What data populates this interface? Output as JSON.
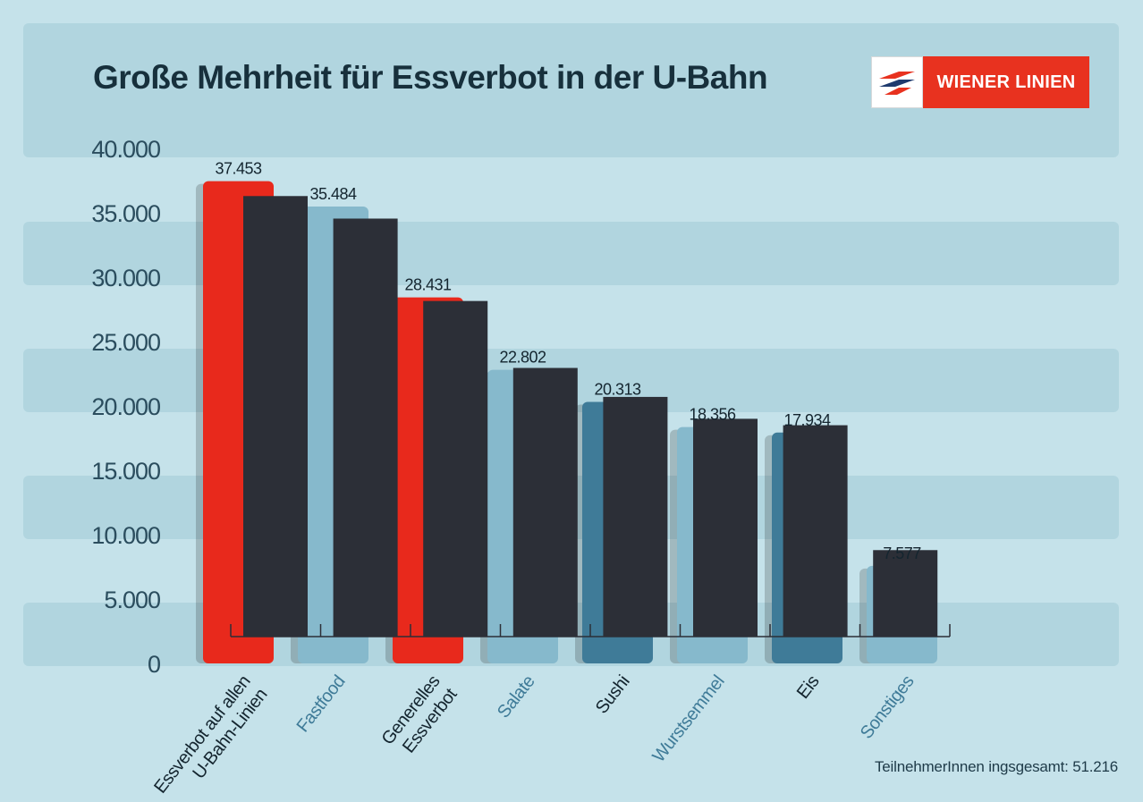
{
  "header": {
    "title": "Große Mehrheit für Essverbot in der U-Bahn",
    "logo_text": "WIENER LINIEN"
  },
  "colors": {
    "background": "#c5e2ea",
    "band": "#b1d5df",
    "highlight_red": "#e8291c",
    "dark_bar": "#2c2f37",
    "light_blue": "#86b9cc",
    "teal_blue": "#3f7b98",
    "axis_text": "#2b4d5e",
    "brand_red": "#e8321f"
  },
  "chart_data": {
    "type": "bar",
    "title": "Große Mehrheit für Essverbot in der U-Bahn",
    "ylim": [
      0,
      40000
    ],
    "yticks": [
      0,
      5000,
      10000,
      15000,
      20000,
      25000,
      30000,
      35000,
      40000
    ],
    "ytick_labels": [
      "0",
      "5.000",
      "10.000",
      "15.000",
      "20.000",
      "25.000",
      "30.000",
      "35.000",
      "40.000"
    ],
    "grid": false,
    "categories": [
      "Essverbot auf allen U-Bahn-Linien",
      "Fastfood",
      "Generelles Essverbot",
      "Salate",
      "Sushi",
      "Wurstsemmel",
      "Eis",
      "Sonstiges"
    ],
    "category_label_lines": [
      [
        "Essverbot auf allen",
        "U-Bahn-Linien"
      ],
      [
        "Fastfood"
      ],
      [
        "Generelles",
        "Essverbot"
      ],
      [
        "Salate"
      ],
      [
        "Sushi"
      ],
      [
        "Wurstsemmel"
      ],
      [
        "Eis"
      ],
      [
        "Sonstiges"
      ]
    ],
    "category_label_colors": [
      "#14252f",
      "#3f7b98",
      "#14252f",
      "#3f7b98",
      "#14252f",
      "#3f7b98",
      "#14252f",
      "#3f7b98"
    ],
    "values": [
      37453,
      35484,
      28431,
      22802,
      20313,
      18356,
      17934,
      7577
    ],
    "value_labels": [
      "37.453",
      "35.484",
      "28.431",
      "22.802",
      "20.313",
      "18.356",
      "17.934",
      "7.577"
    ],
    "bar_colors": [
      "#e8291c",
      "#86b9cc",
      "#e8291c",
      "#86b9cc",
      "#3f7b98",
      "#86b9cc",
      "#3f7b98",
      "#86b9cc"
    ],
    "overlay_series_values": [
      36300,
      34550,
      28150,
      22950,
      20700,
      19000,
      18500,
      8800
    ],
    "overlay_color": "#2c2f37"
  },
  "footnote": "TeilnehmerInnen ingsgesamt: 51.216"
}
